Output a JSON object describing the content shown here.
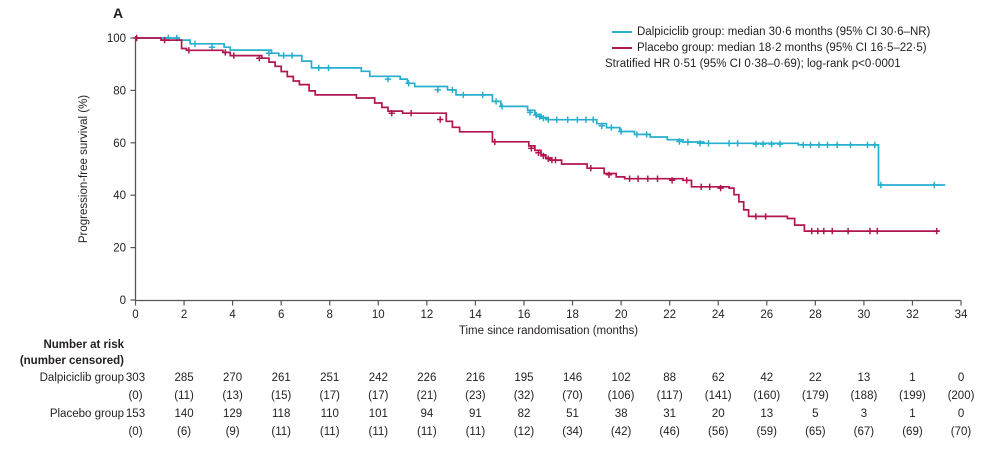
{
  "panel_label": "A",
  "colors": {
    "dalpiciclib": "#27afce",
    "placebo": "#b01550",
    "axis": "#55565a",
    "text": "#231f20"
  },
  "legend": {
    "entries": [
      {
        "label": "Dalpiciclib group: median 30·6 months (95% CI 30·6–NR)",
        "color_key": "dalpiciclib"
      },
      {
        "label": "Placebo group: median 18·2 months (95% CI 16·5–22·5)",
        "color_key": "placebo"
      }
    ],
    "note": "Stratified HR 0·51 (95% CI 0·38–0·69); log-rank p<0·0001"
  },
  "chart_data": {
    "type": "line",
    "subtype": "kaplan-meier-step",
    "title": "",
    "xlabel": "Time since randomisation (months)",
    "ylabel": "Progression-free survival (%)",
    "xlim": [
      0,
      34
    ],
    "ylim": [
      0,
      100
    ],
    "xticks": [
      0,
      2,
      4,
      6,
      8,
      10,
      12,
      14,
      16,
      18,
      20,
      22,
      24,
      26,
      28,
      30,
      32,
      34
    ],
    "yticks": [
      0,
      20,
      40,
      60,
      80,
      100
    ],
    "grid": false,
    "legend_position": "top-right",
    "series": [
      {
        "name": "Dalpiciclib group",
        "color": "#27afce",
        "median_months": "30·6",
        "steps": [
          [
            0,
            100
          ],
          [
            1.8,
            99.2
          ],
          [
            2.25,
            97.8
          ],
          [
            3.65,
            96.5
          ],
          [
            3.9,
            95.4
          ],
          [
            5.6,
            94.2
          ],
          [
            5.9,
            93.3
          ],
          [
            6.85,
            91.2
          ],
          [
            7.25,
            88.6
          ],
          [
            9.3,
            87.3
          ],
          [
            9.65,
            85.4
          ],
          [
            10.9,
            84.3
          ],
          [
            11.2,
            82.7
          ],
          [
            11.5,
            81.5
          ],
          [
            12.85,
            80.2
          ],
          [
            13.2,
            78.3
          ],
          [
            14.7,
            75.8
          ],
          [
            15.05,
            73.9
          ],
          [
            16.15,
            72.4
          ],
          [
            16.45,
            70.8
          ],
          [
            16.7,
            69.6
          ],
          [
            16.95,
            68.8
          ],
          [
            19.0,
            67.3
          ],
          [
            19.4,
            65.8
          ],
          [
            19.95,
            64.3
          ],
          [
            20.55,
            63.2
          ],
          [
            21.2,
            62.2
          ],
          [
            21.9,
            61.2
          ],
          [
            22.55,
            60.3
          ],
          [
            23.4,
            59.8
          ],
          [
            27.3,
            59.2
          ],
          [
            30.6,
            43.9
          ],
          [
            33.35,
            43.9
          ]
        ],
        "censors": [
          [
            1.35,
            100
          ],
          [
            1.7,
            100
          ],
          [
            2.45,
            97.8
          ],
          [
            3.15,
            96.5
          ],
          [
            5.5,
            94.2
          ],
          [
            6.1,
            93.3
          ],
          [
            6.45,
            93.3
          ],
          [
            7.55,
            88.6
          ],
          [
            7.95,
            88.6
          ],
          [
            10.4,
            84.3
          ],
          [
            11.25,
            82.7
          ],
          [
            12.45,
            80.2
          ],
          [
            13.05,
            80.2
          ],
          [
            13.5,
            78.3
          ],
          [
            14.3,
            78.3
          ],
          [
            14.85,
            75.8
          ],
          [
            15.1,
            73.9
          ],
          [
            16.25,
            71.6
          ],
          [
            16.5,
            70.6
          ],
          [
            16.65,
            70.0
          ],
          [
            16.8,
            69.4
          ],
          [
            17.0,
            68.8
          ],
          [
            17.35,
            68.8
          ],
          [
            17.8,
            68.8
          ],
          [
            18.2,
            68.8
          ],
          [
            18.55,
            68.8
          ],
          [
            18.85,
            68.8
          ],
          [
            19.2,
            66.5
          ],
          [
            19.6,
            65.8
          ],
          [
            20.0,
            64.3
          ],
          [
            20.65,
            63.2
          ],
          [
            21.05,
            63.2
          ],
          [
            22.4,
            60.5
          ],
          [
            22.75,
            60.3
          ],
          [
            23.25,
            59.8
          ],
          [
            23.6,
            59.8
          ],
          [
            24.45,
            59.8
          ],
          [
            24.8,
            59.8
          ],
          [
            25.55,
            59.5
          ],
          [
            25.85,
            59.5
          ],
          [
            26.2,
            59.5
          ],
          [
            26.55,
            59.5
          ],
          [
            27.5,
            59.2
          ],
          [
            27.8,
            59.2
          ],
          [
            28.15,
            59.2
          ],
          [
            28.5,
            59.2
          ],
          [
            28.9,
            59.2
          ],
          [
            29.45,
            59.2
          ],
          [
            30.15,
            59.2
          ],
          [
            30.45,
            59.2
          ],
          [
            30.7,
            43.9
          ],
          [
            32.9,
            43.9
          ]
        ]
      },
      {
        "name": "Placebo group",
        "color": "#b01550",
        "median_months": "18·2",
        "steps": [
          [
            0,
            100
          ],
          [
            1.05,
            99.2
          ],
          [
            1.9,
            96
          ],
          [
            2.1,
            95.3
          ],
          [
            3.6,
            94.5
          ],
          [
            3.9,
            93.3
          ],
          [
            5.2,
            92.3
          ],
          [
            5.5,
            90.8
          ],
          [
            5.75,
            89.2
          ],
          [
            6.0,
            87.2
          ],
          [
            6.25,
            85.3
          ],
          [
            6.5,
            83.6
          ],
          [
            6.75,
            82.2
          ],
          [
            7.15,
            79.8
          ],
          [
            7.4,
            78.3
          ],
          [
            9.1,
            77.1
          ],
          [
            9.85,
            75.2
          ],
          [
            10.15,
            73.5
          ],
          [
            10.4,
            72.1
          ],
          [
            11.0,
            71.3
          ],
          [
            12.8,
            68.2
          ],
          [
            13.05,
            65.9
          ],
          [
            13.35,
            64.2
          ],
          [
            14.7,
            60.4
          ],
          [
            16.2,
            58.8
          ],
          [
            16.45,
            57.1
          ],
          [
            16.7,
            55.4
          ],
          [
            16.9,
            54.2
          ],
          [
            17.1,
            53.4
          ],
          [
            17.55,
            51.9
          ],
          [
            18.6,
            50.3
          ],
          [
            19.3,
            48.3
          ],
          [
            19.8,
            47.0
          ],
          [
            20.15,
            46.3
          ],
          [
            22.55,
            45.7
          ],
          [
            22.9,
            43.2
          ],
          [
            24.45,
            42.7
          ],
          [
            24.65,
            40.2
          ],
          [
            24.85,
            37.5
          ],
          [
            25.05,
            34.4
          ],
          [
            25.25,
            31.9
          ],
          [
            26.85,
            31.1
          ],
          [
            27.15,
            28.6
          ],
          [
            27.55,
            26.3
          ],
          [
            33.1,
            26.3
          ]
        ],
        "censors": [
          [
            0.05,
            100
          ],
          [
            1.2,
            99.2
          ],
          [
            2.2,
            95.3
          ],
          [
            3.7,
            94.5
          ],
          [
            4.05,
            93.3
          ],
          [
            5.1,
            92.3
          ],
          [
            10.55,
            71.3
          ],
          [
            11.35,
            71.3
          ],
          [
            12.55,
            68.9
          ],
          [
            14.8,
            60.4
          ],
          [
            16.3,
            57.9
          ],
          [
            16.6,
            56.2
          ],
          [
            16.8,
            55.0
          ],
          [
            17.0,
            53.9
          ],
          [
            17.15,
            53.4
          ],
          [
            17.3,
            53.4
          ],
          [
            18.75,
            50.3
          ],
          [
            19.5,
            47.8
          ],
          [
            20.35,
            46.3
          ],
          [
            20.7,
            46.3
          ],
          [
            21.1,
            46.3
          ],
          [
            21.5,
            46.3
          ],
          [
            22.1,
            45.7
          ],
          [
            22.7,
            45.7
          ],
          [
            23.3,
            43.2
          ],
          [
            23.65,
            43.2
          ],
          [
            24.1,
            42.7
          ],
          [
            25.55,
            31.9
          ],
          [
            25.95,
            31.9
          ],
          [
            27.85,
            26.3
          ],
          [
            28.1,
            26.3
          ],
          [
            28.35,
            26.3
          ],
          [
            28.7,
            26.3
          ],
          [
            29.35,
            26.3
          ],
          [
            30.25,
            26.3
          ],
          [
            30.55,
            26.3
          ],
          [
            33.0,
            26.3
          ]
        ]
      }
    ]
  },
  "risk_table": {
    "header_line1": "Number at risk",
    "header_line2": "(number censored)",
    "rows": [
      {
        "label": "Dalpiciclib group",
        "at_risk": [
          303,
          285,
          270,
          261,
          251,
          242,
          226,
          216,
          195,
          146,
          102,
          88,
          62,
          42,
          22,
          13,
          1,
          0
        ],
        "censored": [
          "(0)",
          "(11)",
          "(13)",
          "(15)",
          "(17)",
          "(17)",
          "(21)",
          "(23)",
          "(32)",
          "(70)",
          "(106)",
          "(117)",
          "(141)",
          "(160)",
          "(179)",
          "(188)",
          "(199)",
          "(200)"
        ]
      },
      {
        "label": "Placebo group",
        "at_risk": [
          153,
          140,
          129,
          118,
          110,
          101,
          94,
          91,
          82,
          51,
          38,
          31,
          20,
          13,
          5,
          3,
          1,
          0
        ],
        "censored": [
          "(0)",
          "(6)",
          "(9)",
          "(11)",
          "(11)",
          "(11)",
          "(11)",
          "(11)",
          "(12)",
          "(34)",
          "(42)",
          "(46)",
          "(56)",
          "(59)",
          "(65)",
          "(67)",
          "(69)",
          "(70)"
        ]
      }
    ]
  }
}
